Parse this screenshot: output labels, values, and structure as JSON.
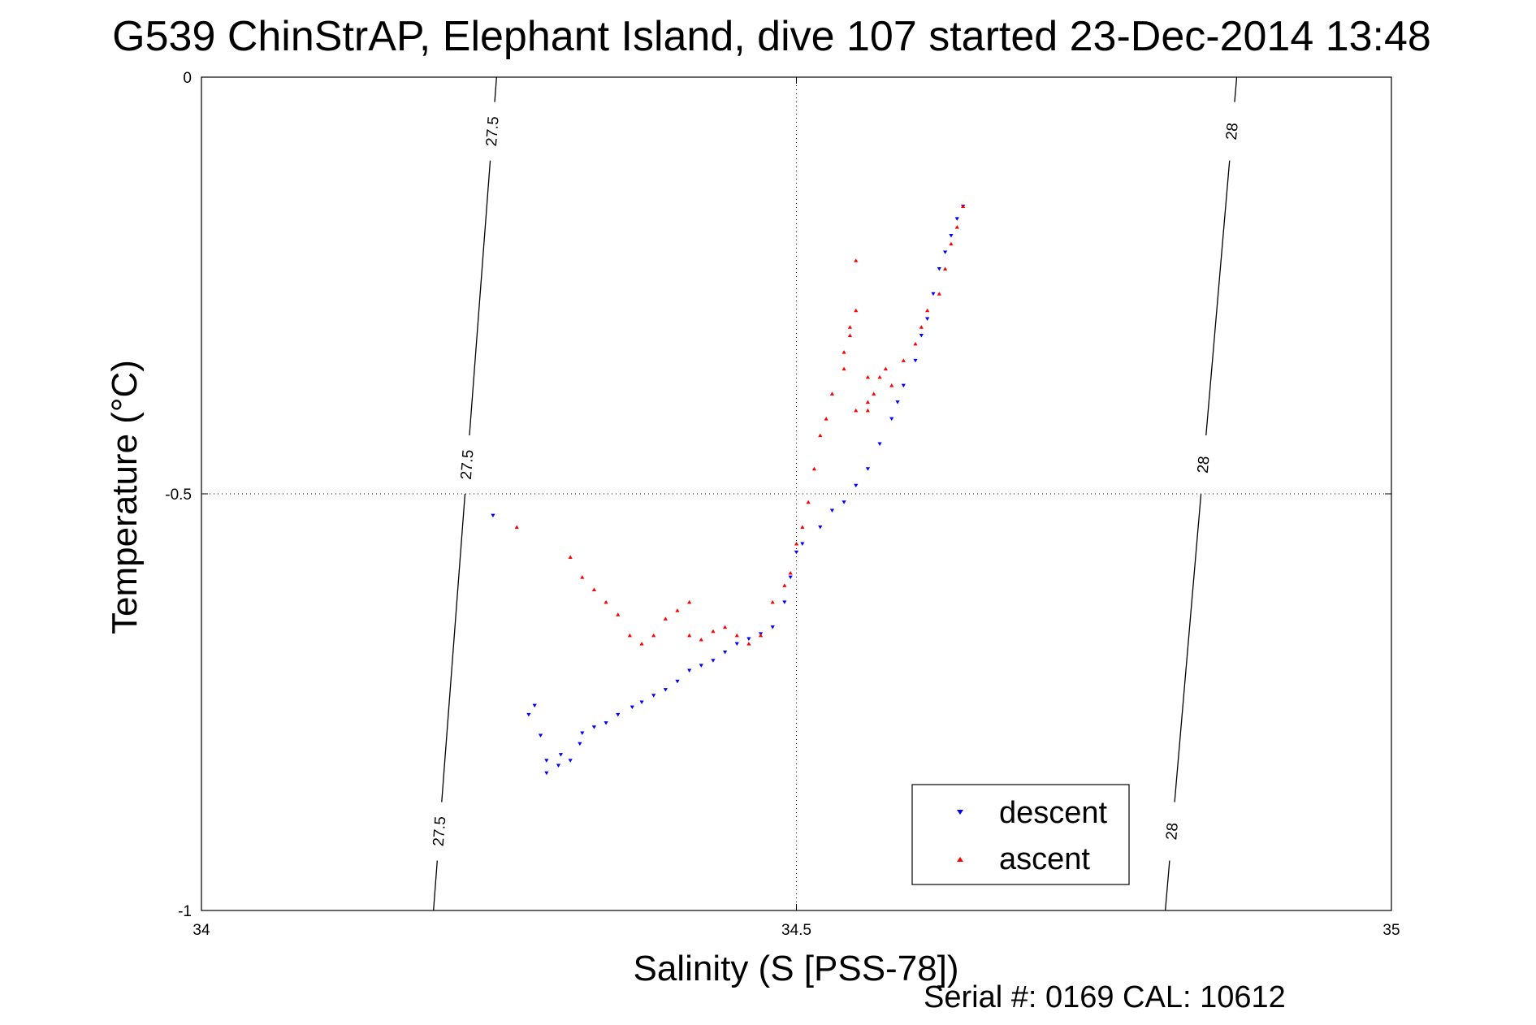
{
  "chart_data": {
    "type": "scatter",
    "title": "G539 ChinStrAP, Elephant Island, dive 107 started 23-Dec-2014 13:48",
    "xlabel": "Salinity (S [PSS-78])",
    "ylabel": "Temperature (°C)",
    "xlim": [
      34,
      35
    ],
    "ylim": [
      -1,
      0
    ],
    "xticks": [
      "34",
      "34.5",
      "35"
    ],
    "yticks": [
      "-1",
      "-0.5",
      "0"
    ],
    "grid": true,
    "legend_position": "bottom-right",
    "series": [
      {
        "name": "descent",
        "color": "#0000ff",
        "marker": "triangle-down",
        "x": [
          34.245,
          34.28,
          34.275,
          34.285,
          34.29,
          34.302,
          34.29,
          34.3,
          34.31,
          34.318,
          34.32,
          34.33,
          34.34,
          34.35,
          34.362,
          34.37,
          34.38,
          34.39,
          34.4,
          34.41,
          34.42,
          34.43,
          34.44,
          34.45,
          34.46,
          34.47,
          34.48,
          34.49,
          34.495,
          34.5,
          34.505,
          34.52,
          34.53,
          34.54,
          34.55,
          34.56,
          34.57,
          34.58,
          34.585,
          34.59,
          34.6,
          34.605,
          34.61,
          34.615,
          34.62,
          34.625,
          34.63,
          34.635,
          34.64
        ],
        "y": [
          -0.526,
          -0.754,
          -0.765,
          -0.79,
          -0.82,
          -0.813,
          -0.835,
          -0.826,
          -0.82,
          -0.8,
          -0.787,
          -0.78,
          -0.775,
          -0.765,
          -0.756,
          -0.75,
          -0.742,
          -0.735,
          -0.725,
          -0.712,
          -0.706,
          -0.7,
          -0.69,
          -0.68,
          -0.674,
          -0.668,
          -0.66,
          -0.63,
          -0.6,
          -0.57,
          -0.56,
          -0.54,
          -0.52,
          -0.51,
          -0.49,
          -0.47,
          -0.44,
          -0.41,
          -0.39,
          -0.37,
          -0.34,
          -0.31,
          -0.29,
          -0.26,
          -0.23,
          -0.21,
          -0.19,
          -0.17,
          -0.155
        ]
      },
      {
        "name": "ascent",
        "color": "#ff0000",
        "marker": "triangle-up",
        "x": [
          34.265,
          34.31,
          34.32,
          34.33,
          34.34,
          34.35,
          34.36,
          34.37,
          34.38,
          34.39,
          34.4,
          34.41,
          34.41,
          34.42,
          34.43,
          34.44,
          34.45,
          34.46,
          34.47,
          34.48,
          34.49,
          34.495,
          34.5,
          34.505,
          34.51,
          34.515,
          34.52,
          34.525,
          34.53,
          34.54,
          34.545,
          34.55,
          34.56,
          34.57,
          34.575,
          34.58,
          34.59,
          34.6,
          34.605,
          34.61,
          34.62,
          34.625,
          34.63,
          34.635,
          34.64,
          34.54,
          34.545,
          34.55,
          34.55,
          34.56,
          34.565,
          34.56
        ],
        "y": [
          -0.54,
          -0.576,
          -0.6,
          -0.615,
          -0.63,
          -0.645,
          -0.67,
          -0.68,
          -0.67,
          -0.65,
          -0.64,
          -0.63,
          -0.67,
          -0.675,
          -0.665,
          -0.66,
          -0.67,
          -0.68,
          -0.67,
          -0.63,
          -0.61,
          -0.595,
          -0.56,
          -0.54,
          -0.51,
          -0.47,
          -0.43,
          -0.41,
          -0.38,
          -0.35,
          -0.31,
          -0.4,
          -0.39,
          -0.36,
          -0.35,
          -0.37,
          -0.34,
          -0.32,
          -0.3,
          -0.28,
          -0.26,
          -0.23,
          -0.2,
          -0.18,
          -0.155,
          -0.33,
          -0.3,
          -0.28,
          -0.22,
          -0.36,
          -0.38,
          -0.4
        ]
      }
    ],
    "contours": [
      {
        "label": "27.5",
        "x_top": 34.248,
        "x_bottom": 34.195
      },
      {
        "label": "28",
        "x_top": 34.87,
        "x_bottom": 34.81
      }
    ],
    "legend": [
      {
        "label": "descent",
        "color": "#0000ff",
        "marker": "triangle-down"
      },
      {
        "label": "ascent",
        "color": "#ff0000",
        "marker": "triangle-up"
      }
    ]
  },
  "footer": {
    "serial": "Serial #: 0169 CAL: 10612"
  }
}
